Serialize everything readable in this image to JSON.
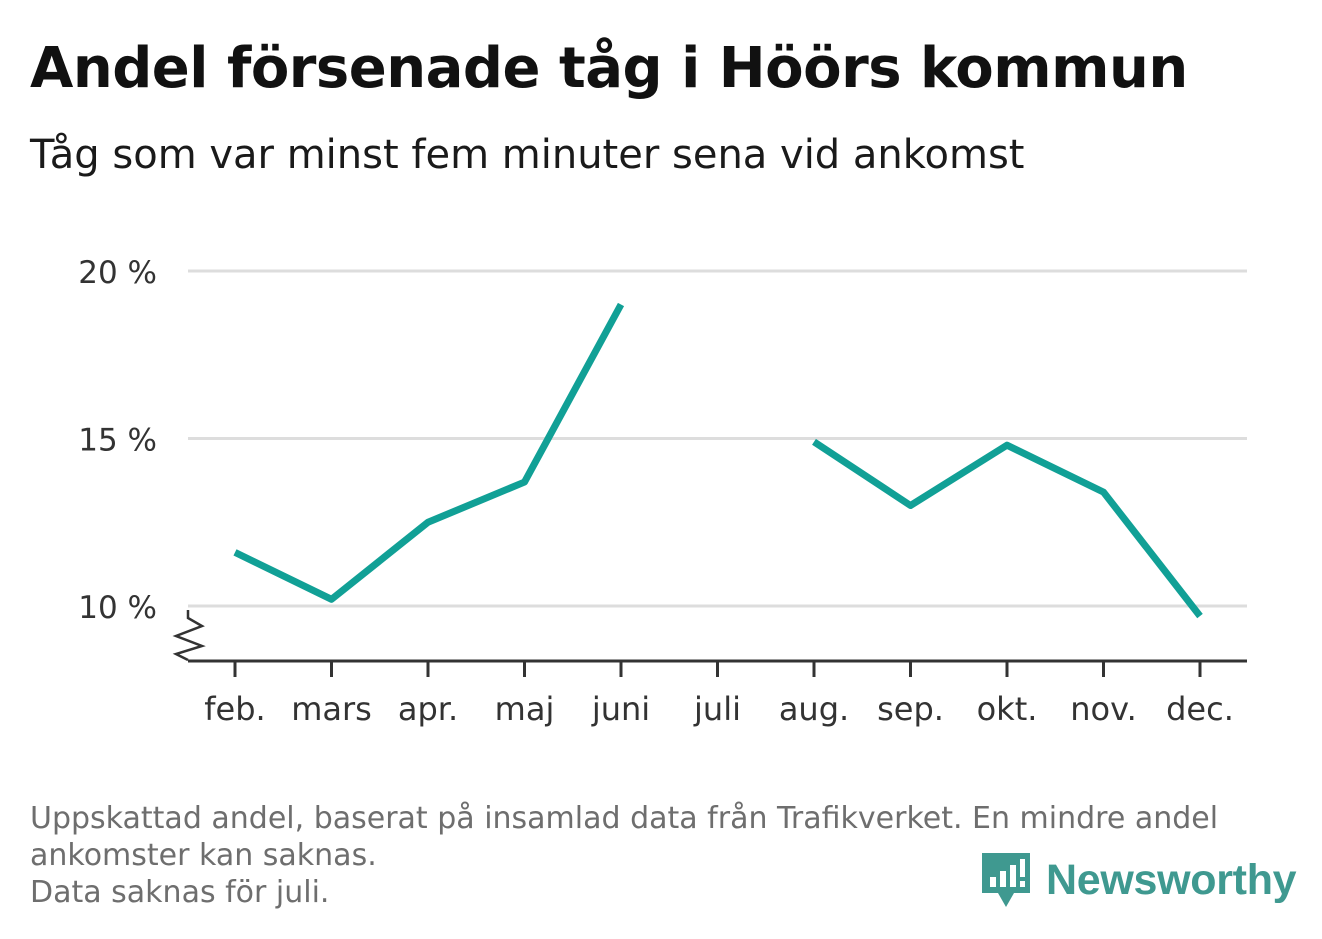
{
  "header": {
    "title": "Andel försenade tåg i Höörs kommun",
    "subtitle": "Tåg som var minst fem minuter sena vid ankomst"
  },
  "chart_data": {
    "type": "line",
    "title": "Andel försenade tåg i Höörs kommun",
    "subtitle": "Tåg som var minst fem minuter sena vid ankomst",
    "categories": [
      "feb.",
      "mars",
      "apr.",
      "maj",
      "juni",
      "juli",
      "aug.",
      "sep.",
      "okt.",
      "nov.",
      "dec."
    ],
    "series": [
      {
        "values": [
          11.6,
          10.2,
          12.5,
          13.7,
          19.0,
          null,
          14.9,
          13.0,
          14.8,
          13.4,
          9.7
        ],
        "color": "#11a096"
      }
    ],
    "y_ticks": [
      {
        "value": 10,
        "label": "10 %"
      },
      {
        "value": 15,
        "label": "15 %"
      },
      {
        "value": 20,
        "label": "20 %"
      }
    ],
    "ylim": [
      8.3,
      20
    ],
    "y_axis_break": true,
    "grid": true,
    "xlabel": "",
    "ylabel": ""
  },
  "footnote": {
    "lines": [
      "Uppskattad andel, baserat på insamlad data från Trafikverket. En mindre andel",
      "ankomster kan saknas.",
      "Data saknas för juli."
    ]
  },
  "branding": {
    "name": "Newsworthy",
    "icon": "newsworthy-logo-icon",
    "color": "#3f9990"
  }
}
